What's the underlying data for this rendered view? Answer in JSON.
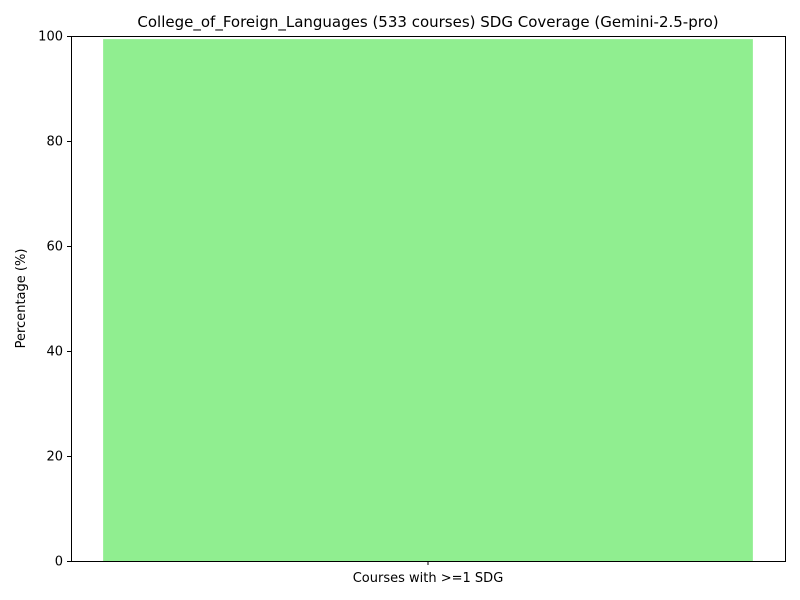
{
  "chart_data": {
    "type": "bar",
    "title": "College_of_Foreign_Languages (533 courses) SDG Coverage (Gemini-2.5-pro)",
    "xlabel": "",
    "ylabel": "Percentage (%)",
    "categories": [
      "Courses with >=1 SDG"
    ],
    "values": [
      99.4
    ],
    "ylim": [
      0,
      100
    ],
    "yticks": [
      0,
      20,
      40,
      60,
      80,
      100
    ],
    "grid": false,
    "legend": "none",
    "bar_color": "#90ee90",
    "axis_color": "#000000"
  }
}
